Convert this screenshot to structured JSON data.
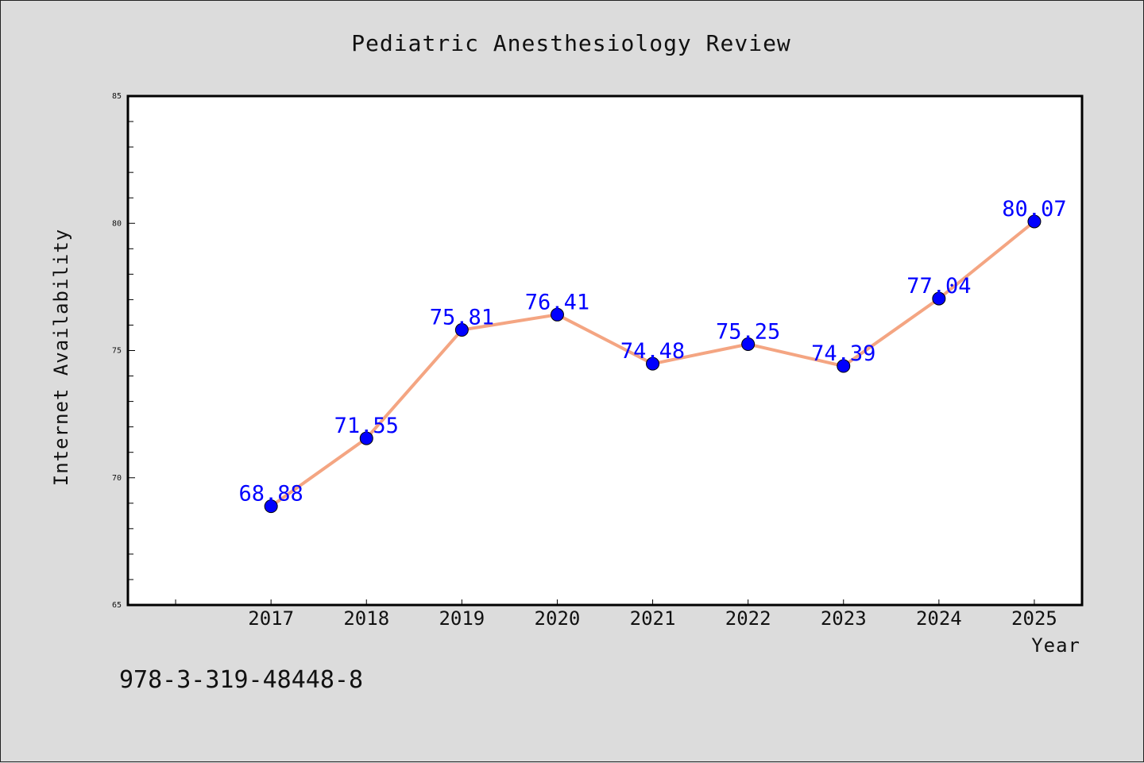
{
  "chart_data": {
    "type": "line",
    "title": "Pediatric Anesthesiology Review",
    "xlabel": "Year",
    "ylabel": "Internet Availability",
    "categories": [
      "2017",
      "2018",
      "2019",
      "2020",
      "2021",
      "2022",
      "2023",
      "2024",
      "2025"
    ],
    "series": [
      {
        "values": [
          68.88,
          71.55,
          75.81,
          76.41,
          74.48,
          75.25,
          74.39,
          77.04,
          80.07
        ],
        "data_labels": [
          "68.88",
          "71.55",
          "75.81",
          "76.41",
          "74.48",
          "75.25",
          "74.39",
          "77.04",
          "80.07"
        ]
      }
    ],
    "ylim": [
      65,
      85
    ],
    "yticks": [
      "65",
      "70",
      "75",
      "80",
      "85"
    ],
    "xlim_index": [
      -1.5,
      8.5
    ],
    "grid": false,
    "colors": {
      "line": "#f4a582",
      "marker": "#0000ff",
      "data_label": "#0000ff",
      "background": "#dcdcdc",
      "plot_background": "#ffffff"
    }
  },
  "footer": {
    "isbn": "978-3-319-48448-8"
  }
}
